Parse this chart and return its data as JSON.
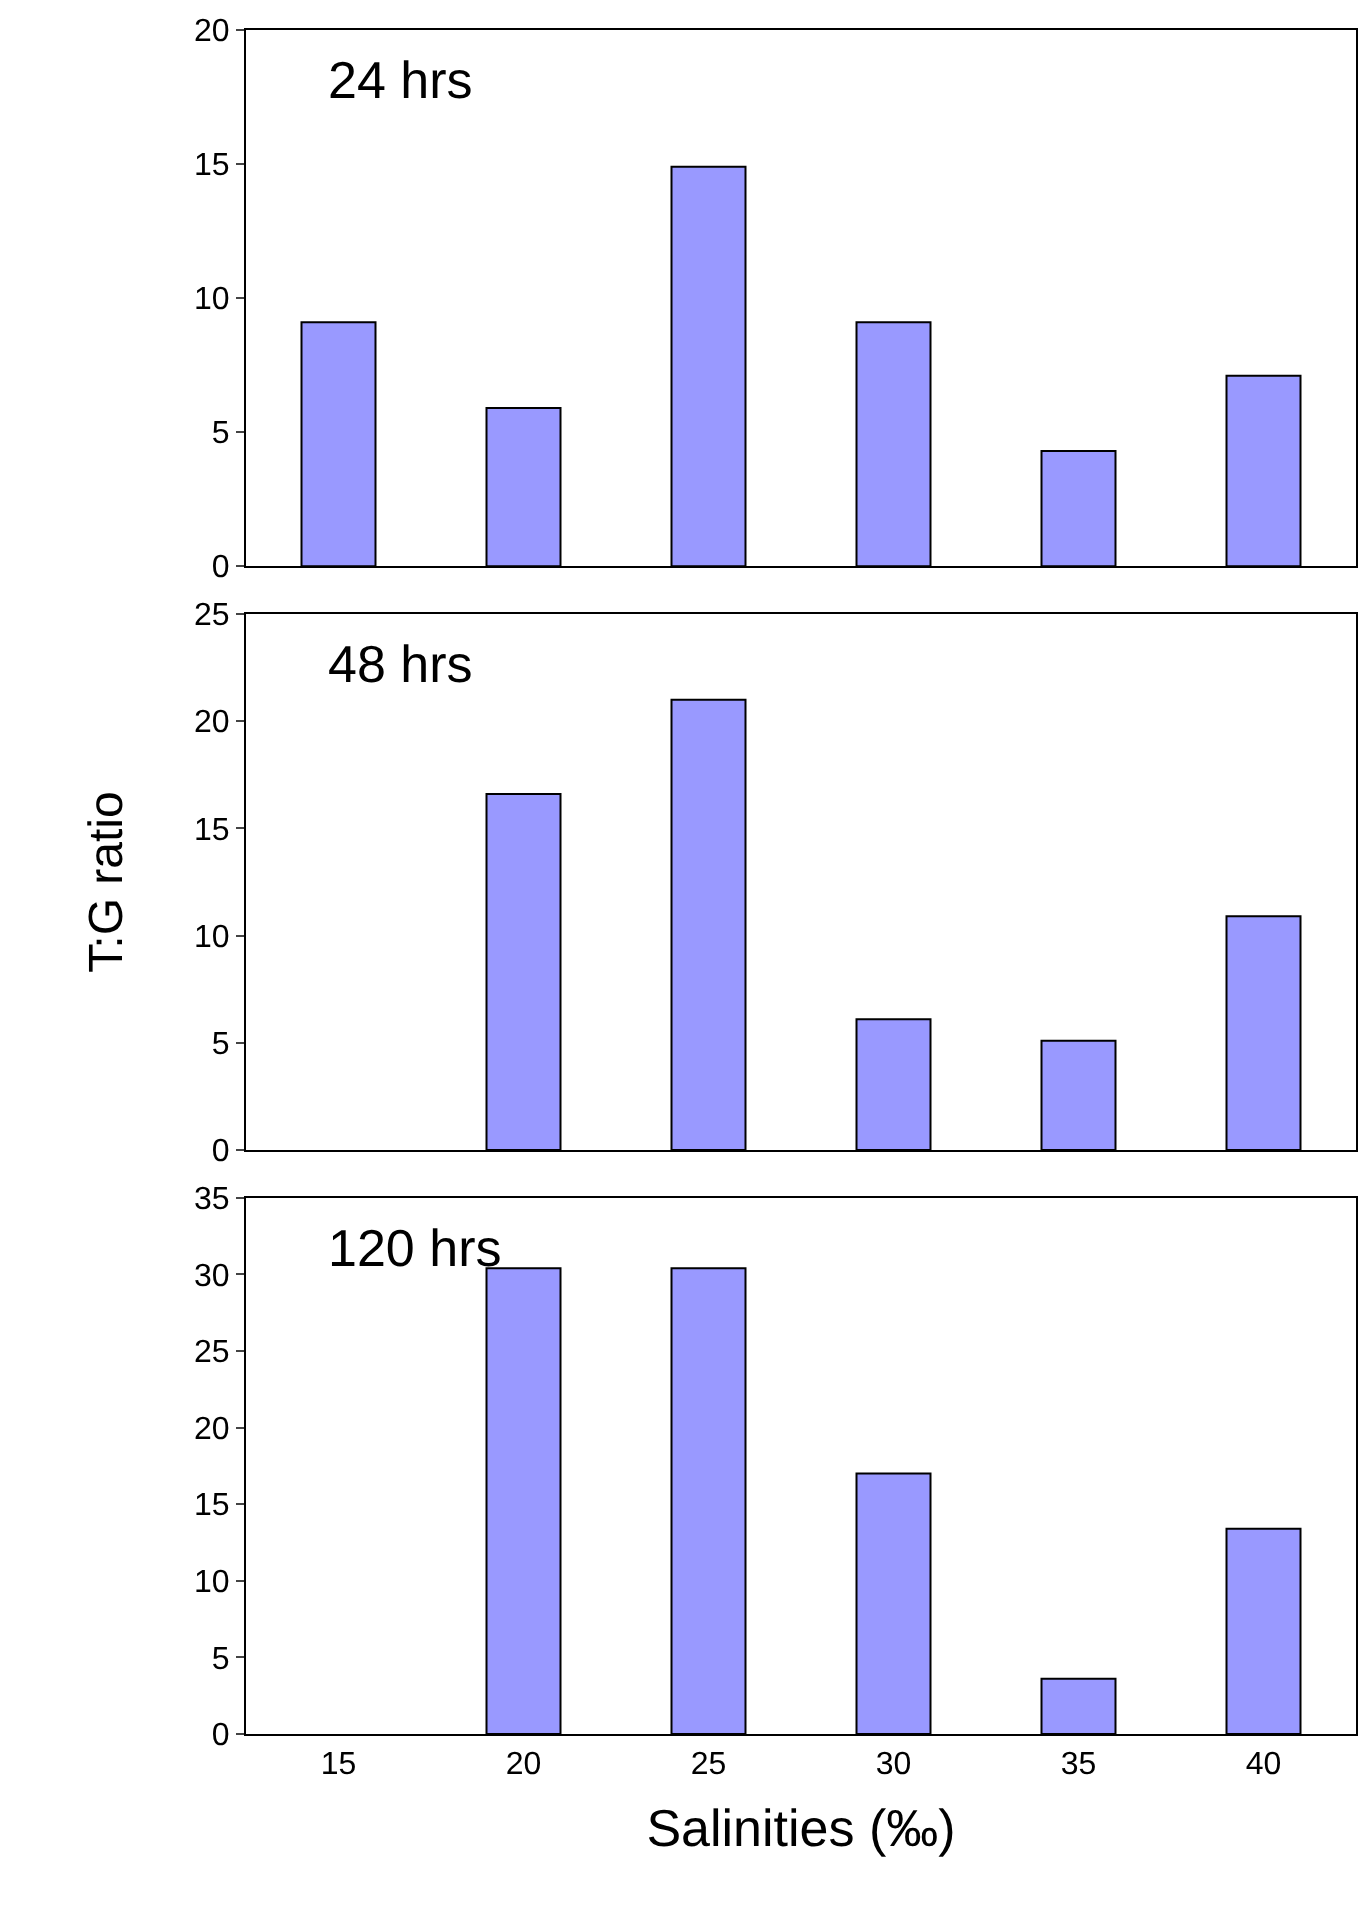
{
  "chart_data": [
    {
      "type": "bar",
      "title": "24 hrs",
      "categories": [
        "15",
        "20",
        "25",
        "30",
        "35",
        "40"
      ],
      "values": [
        9.1,
        5.9,
        14.9,
        9.1,
        4.3,
        7.1
      ],
      "color": "#9999ff",
      "ylim": [
        0,
        20
      ],
      "yticks": [
        0,
        5,
        10,
        15,
        20
      ],
      "tick_labels": "y"
    },
    {
      "type": "bar",
      "title": "48 hrs",
      "ylabel": "T:G ratio",
      "categories": [
        "15",
        "20",
        "25",
        "30",
        "35",
        "40"
      ],
      "values": [
        null,
        16.6,
        21.0,
        6.1,
        5.1,
        10.9
      ],
      "color": "#9999ff",
      "ylim": [
        0,
        25
      ],
      "yticks": [
        0,
        5,
        10,
        15,
        20,
        25
      ],
      "tick_labels": "y"
    },
    {
      "type": "bar",
      "title": "120 hrs",
      "xlabel": "Salinities (‰)",
      "categories": [
        "15",
        "20",
        "25",
        "30",
        "35",
        "40"
      ],
      "values": [
        null,
        30.4,
        30.4,
        17.0,
        3.6,
        13.4
      ],
      "color": "#9999ff",
      "ylim": [
        0,
        35
      ],
      "yticks": [
        0,
        5,
        10,
        15,
        20,
        25,
        30,
        35
      ]
    }
  ]
}
